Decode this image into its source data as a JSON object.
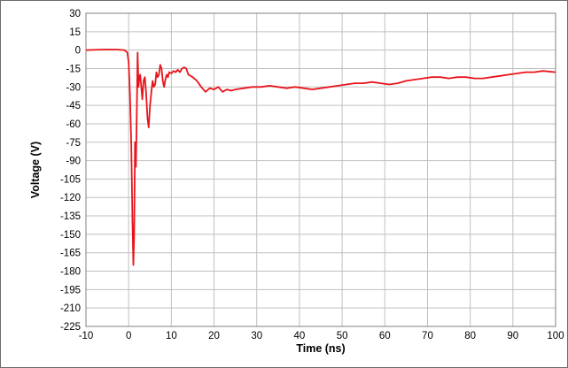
{
  "chart_data": {
    "type": "line",
    "title": "",
    "xlabel": "Time (ns)",
    "ylabel": "Voltage (V)",
    "xlim": [
      -10,
      100
    ],
    "ylim": [
      -225,
      30
    ],
    "xticks": [
      -10,
      0,
      10,
      20,
      30,
      40,
      50,
      60,
      70,
      80,
      90,
      100
    ],
    "yticks": [
      30,
      15,
      0,
      -15,
      -30,
      -45,
      -60,
      -75,
      -90,
      -105,
      -120,
      -135,
      -150,
      -165,
      -180,
      -195,
      -210,
      -225
    ],
    "grid": true,
    "legend": "none",
    "colors": {
      "line": "#e8141b",
      "grid": "#bfbfbf",
      "axis": "#808080"
    },
    "series": [
      {
        "x": [
          -10,
          -6,
          -3,
          -1,
          -0.3,
          0,
          0.3,
          0.6,
          0.9,
          1.1,
          1.3,
          1.5,
          1.7,
          1.9,
          2.1,
          2.3,
          2.5,
          2.7,
          2.9,
          3.2,
          3.5,
          3.8,
          4.1,
          4.4,
          4.7,
          5,
          5.3,
          5.6,
          5.9,
          6.2,
          6.5,
          6.8,
          7.1,
          7.4,
          7.7,
          8,
          8.3,
          8.6,
          8.9,
          9.2,
          9.5,
          10,
          10.5,
          11,
          11.5,
          12,
          12.5,
          13,
          13.5,
          14,
          15,
          16,
          17,
          18,
          19,
          20,
          21,
          22,
          23,
          24,
          25,
          27,
          29,
          31,
          33,
          35,
          37,
          39,
          41,
          43,
          45,
          47,
          49,
          51,
          53,
          55,
          57,
          59,
          61,
          63,
          65,
          67,
          69,
          71,
          73,
          75,
          77,
          79,
          81,
          83,
          85,
          87,
          89,
          91,
          93,
          95,
          97,
          100
        ],
        "y": [
          0,
          0.5,
          0.5,
          0,
          -2,
          -10,
          -35,
          -75,
          -140,
          -175,
          -150,
          -75,
          -95,
          -55,
          -2,
          -30,
          -22,
          -20,
          -28,
          -40,
          -25,
          -22,
          -35,
          -55,
          -63,
          -45,
          -35,
          -25,
          -30,
          -28,
          -18,
          -22,
          -20,
          -12,
          -15,
          -25,
          -30,
          -24,
          -20,
          -22,
          -18,
          -19,
          -17,
          -18,
          -16,
          -18,
          -15,
          -14,
          -15,
          -20,
          -22,
          -25,
          -30,
          -34,
          -31,
          -32,
          -30,
          -34,
          -32,
          -33,
          -32,
          -31,
          -30,
          -30,
          -29,
          -30,
          -31,
          -30,
          -31,
          -32,
          -31,
          -30,
          -29,
          -28,
          -27,
          -27,
          -26,
          -27,
          -28,
          -27,
          -25,
          -24,
          -23,
          -22,
          -22,
          -23,
          -22,
          -22,
          -23,
          -23,
          -22,
          -21,
          -20,
          -19,
          -18,
          -18,
          -17,
          -18
        ]
      }
    ]
  }
}
